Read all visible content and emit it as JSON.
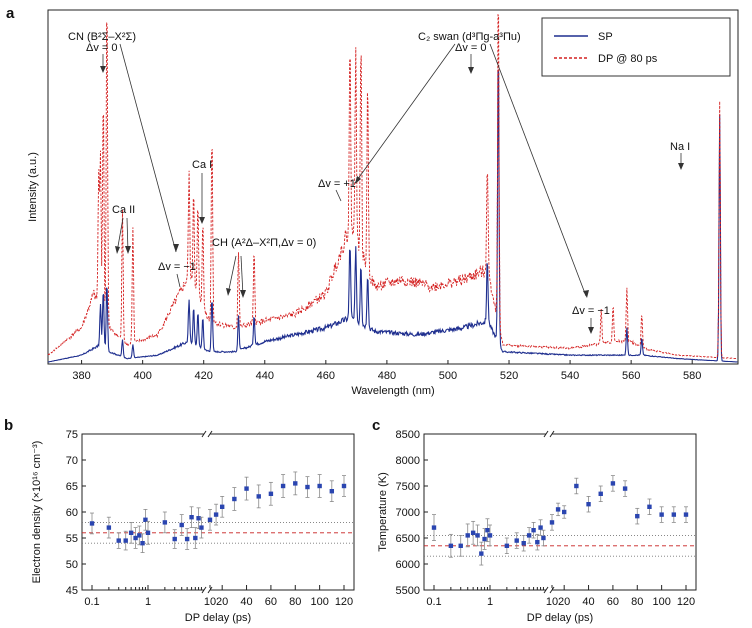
{
  "colors": {
    "sp": "#1f2f8f",
    "dp": "#d42020",
    "point": "#2a45b0",
    "err": "#8a8a8a",
    "ref_dotted": "#777777",
    "ref_dashed": "#c81e1e"
  },
  "panel_a": {
    "label": "a",
    "legend": {
      "sp": "SP",
      "dp": "DP @ 80 ps"
    },
    "annotations": {
      "cn_title": "CN (B²Σ–X²Σ)",
      "cn_dv0": "Δv = 0",
      "cn_dvm1": "Δv = −1",
      "ca2": "Ca II",
      "ca1": "Ca I",
      "ch": "CH (A²Δ–X²Π,Δv = 0)",
      "c2_title": "C₂ swan (d³Πg-a³Πu)",
      "c2_dv0": "Δv = 0",
      "c2_dvp1": "Δv = +1",
      "c2_dvm1": "Δv = −1",
      "na": "Na I"
    }
  },
  "panel_b": {
    "label": "b"
  },
  "panel_c": {
    "label": "c"
  },
  "chart_data": [
    {
      "type": "line",
      "xlabel": "Wavelength (nm)",
      "ylabel": "Intensity (a.u.)",
      "xlim": [
        369,
        595
      ],
      "ylim": [
        0,
        1
      ],
      "x_ticks": [
        "380",
        "400",
        "420",
        "440",
        "460",
        "480",
        "500",
        "520",
        "540",
        "560",
        "580"
      ],
      "legend_position": "top-right",
      "series": [
        {
          "name": "SP",
          "baseline": [
            [
              369,
              0.0
            ],
            [
              380,
              0.02
            ],
            [
              386,
              0.05
            ],
            [
              389,
              0.03
            ],
            [
              395,
              0.01
            ],
            [
              405,
              0.02
            ],
            [
              415,
              0.06
            ],
            [
              422,
              0.03
            ],
            [
              430,
              0.03
            ],
            [
              440,
              0.06
            ],
            [
              450,
              0.08
            ],
            [
              460,
              0.1
            ],
            [
              468,
              0.13
            ],
            [
              476,
              0.09
            ],
            [
              490,
              0.08
            ],
            [
              505,
              0.1
            ],
            [
              513,
              0.12
            ],
            [
              518,
              0.03
            ],
            [
              540,
              0.02
            ],
            [
              560,
              0.02
            ],
            [
              564,
              0.02
            ],
            [
              575,
              0.01
            ],
            [
              595,
              0.0
            ]
          ],
          "peaks": [
            [
              386.2,
              0.12
            ],
            [
              387.1,
              0.17
            ],
            [
              388.3,
              0.2
            ],
            [
              393.4,
              0.05
            ],
            [
              396.8,
              0.04
            ],
            [
              415.2,
              0.12
            ],
            [
              416.7,
              0.11
            ],
            [
              418.1,
              0.1
            ],
            [
              419.7,
              0.09
            ],
            [
              422.7,
              0.16
            ],
            [
              431.4,
              0.1
            ],
            [
              436.5,
              0.09
            ],
            [
              467.9,
              0.22
            ],
            [
              469.8,
              0.21
            ],
            [
              471.5,
              0.18
            ],
            [
              473.7,
              0.16
            ],
            [
              512.9,
              0.18
            ],
            [
              516.5,
              0.88
            ],
            [
              558.6,
              0.08
            ],
            [
              563.5,
              0.05
            ],
            [
              589.0,
              0.72
            ]
          ]
        },
        {
          "name": "DP @ 80 ps",
          "baseline": [
            [
              369,
              0.02
            ],
            [
              380,
              0.1
            ],
            [
              384,
              0.2
            ],
            [
              389,
              0.1
            ],
            [
              395,
              0.05
            ],
            [
              405,
              0.08
            ],
            [
              415,
              0.25
            ],
            [
              422,
              0.12
            ],
            [
              430,
              0.1
            ],
            [
              440,
              0.12
            ],
            [
              450,
              0.14
            ],
            [
              460,
              0.2
            ],
            [
              468,
              0.4
            ],
            [
              476,
              0.22
            ],
            [
              485,
              0.24
            ],
            [
              495,
              0.22
            ],
            [
              505,
              0.24
            ],
            [
              513,
              0.27
            ],
            [
              518,
              0.05
            ],
            [
              540,
              0.04
            ],
            [
              555,
              0.06
            ],
            [
              560,
              0.06
            ],
            [
              564,
              0.04
            ],
            [
              575,
              0.02
            ],
            [
              595,
              0.01
            ]
          ],
          "peaks": [
            [
              385.6,
              0.38
            ],
            [
              386.2,
              0.45
            ],
            [
              387.1,
              0.65
            ],
            [
              388.3,
              0.97
            ],
            [
              393.4,
              0.38
            ],
            [
              396.8,
              0.34
            ],
            [
              415.2,
              0.3
            ],
            [
              416.7,
              0.29
            ],
            [
              418.1,
              0.27
            ],
            [
              419.7,
              0.25
            ],
            [
              422.7,
              0.56
            ],
            [
              431.4,
              0.22
            ],
            [
              436.5,
              0.21
            ],
            [
              467.9,
              0.52
            ],
            [
              469.8,
              0.58
            ],
            [
              471.5,
              0.62
            ],
            [
              473.7,
              0.55
            ],
            [
              512.9,
              0.32
            ],
            [
              516.5,
              1.0
            ],
            [
              550.2,
              0.1
            ],
            [
              554.1,
              0.11
            ],
            [
              558.6,
              0.16
            ],
            [
              563.5,
              0.1
            ],
            [
              589.0,
              0.75
            ]
          ]
        }
      ]
    },
    {
      "type": "scatter",
      "xlabel": "DP delay (ps)",
      "ylabel": "Electron density (×10¹⁶ cm⁻³)",
      "ylim": [
        45,
        75
      ],
      "y_ticks": [
        "45",
        "50",
        "55",
        "60",
        "65",
        "70",
        "75"
      ],
      "x_ticks_log": [
        "0.1",
        "1",
        "10"
      ],
      "x_ticks_lin": [
        "10",
        "20",
        "40",
        "60",
        "80",
        "100",
        "120"
      ],
      "x_axis": "log 0.1–10, break, linear 10–120",
      "reference_lines": {
        "dashed": 56.0,
        "dotted_upper": 58.0,
        "dotted_lower": 54.0
      },
      "series": [
        {
          "name": "",
          "points": [
            [
              0.1,
              57.8,
              2.0
            ],
            [
              0.2,
              57.0,
              2.0
            ],
            [
              0.3,
              54.5,
              1.5
            ],
            [
              0.4,
              54.5,
              1.8
            ],
            [
              0.5,
              56.0,
              2.0
            ],
            [
              0.6,
              55.0,
              2.0
            ],
            [
              0.7,
              55.5,
              1.8
            ],
            [
              0.8,
              54.0,
              1.8
            ],
            [
              0.9,
              58.5,
              2.0
            ],
            [
              1.0,
              56.0,
              2.2
            ],
            [
              2,
              58.0,
              2.0
            ],
            [
              3,
              54.8,
              1.8
            ],
            [
              4,
              57.5,
              2.0
            ],
            [
              5,
              54.8,
              2.0
            ],
            [
              6,
              59.0,
              2.0
            ],
            [
              7,
              55.0,
              2.0
            ],
            [
              8,
              58.8,
              2.0
            ],
            [
              9,
              57.0,
              2.0
            ],
            [
              10,
              58.5,
              2.0
            ],
            [
              15,
              59.5,
              2.0
            ],
            [
              20,
              61.0,
              2.0
            ],
            [
              30,
              62.5,
              2.2
            ],
            [
              40,
              64.5,
              2.2
            ],
            [
              50,
              63.0,
              2.2
            ],
            [
              60,
              63.5,
              2.2
            ],
            [
              70,
              65.0,
              2.2
            ],
            [
              80,
              65.5,
              2.2
            ],
            [
              90,
              64.8,
              2.0
            ],
            [
              100,
              65.0,
              2.2
            ],
            [
              110,
              64.0,
              2.0
            ],
            [
              120,
              65.0,
              2.0
            ]
          ]
        }
      ]
    },
    {
      "type": "scatter",
      "xlabel": "DP delay (ps)",
      "ylabel": "Temperature (K)",
      "ylim": [
        5500,
        8500
      ],
      "y_ticks": [
        "5500",
        "6000",
        "6500",
        "7000",
        "7500",
        "8000",
        "8500"
      ],
      "x_ticks_log": [
        "0.1",
        "1",
        "10"
      ],
      "x_ticks_lin": [
        "10",
        "20",
        "40",
        "60",
        "80",
        "100",
        "120"
      ],
      "x_axis": "log 0.1–10, break, linear 10–120",
      "reference_lines": {
        "dashed": 6350,
        "dotted_upper": 6550,
        "dotted_lower": 6150
      },
      "series": [
        {
          "name": "",
          "points": [
            [
              0.1,
              6700,
              250
            ],
            [
              0.2,
              6350,
              220
            ],
            [
              0.3,
              6350,
              200
            ],
            [
              0.4,
              6550,
              220
            ],
            [
              0.5,
              6600,
              220
            ],
            [
              0.6,
              6550,
              200
            ],
            [
              0.7,
              6200,
              220
            ],
            [
              0.8,
              6480,
              200
            ],
            [
              0.9,
              6650,
              220
            ],
            [
              1.0,
              6550,
              200
            ],
            [
              2,
              6350,
              150
            ],
            [
              3,
              6450,
              150
            ],
            [
              4,
              6400,
              150
            ],
            [
              5,
              6550,
              150
            ],
            [
              6,
              6650,
              150
            ],
            [
              7,
              6420,
              150
            ],
            [
              8,
              6700,
              150
            ],
            [
              9,
              6500,
              150
            ],
            [
              10,
              6800,
              150
            ],
            [
              15,
              7050,
              120
            ],
            [
              20,
              7000,
              120
            ],
            [
              30,
              7500,
              150
            ],
            [
              40,
              7150,
              150
            ],
            [
              50,
              7350,
              150
            ],
            [
              60,
              7550,
              150
            ],
            [
              70,
              7450,
              150
            ],
            [
              80,
              6920,
              150
            ],
            [
              90,
              7100,
              150
            ],
            [
              100,
              6950,
              150
            ],
            [
              110,
              6950,
              150
            ],
            [
              120,
              6950,
              150
            ]
          ]
        }
      ]
    }
  ]
}
